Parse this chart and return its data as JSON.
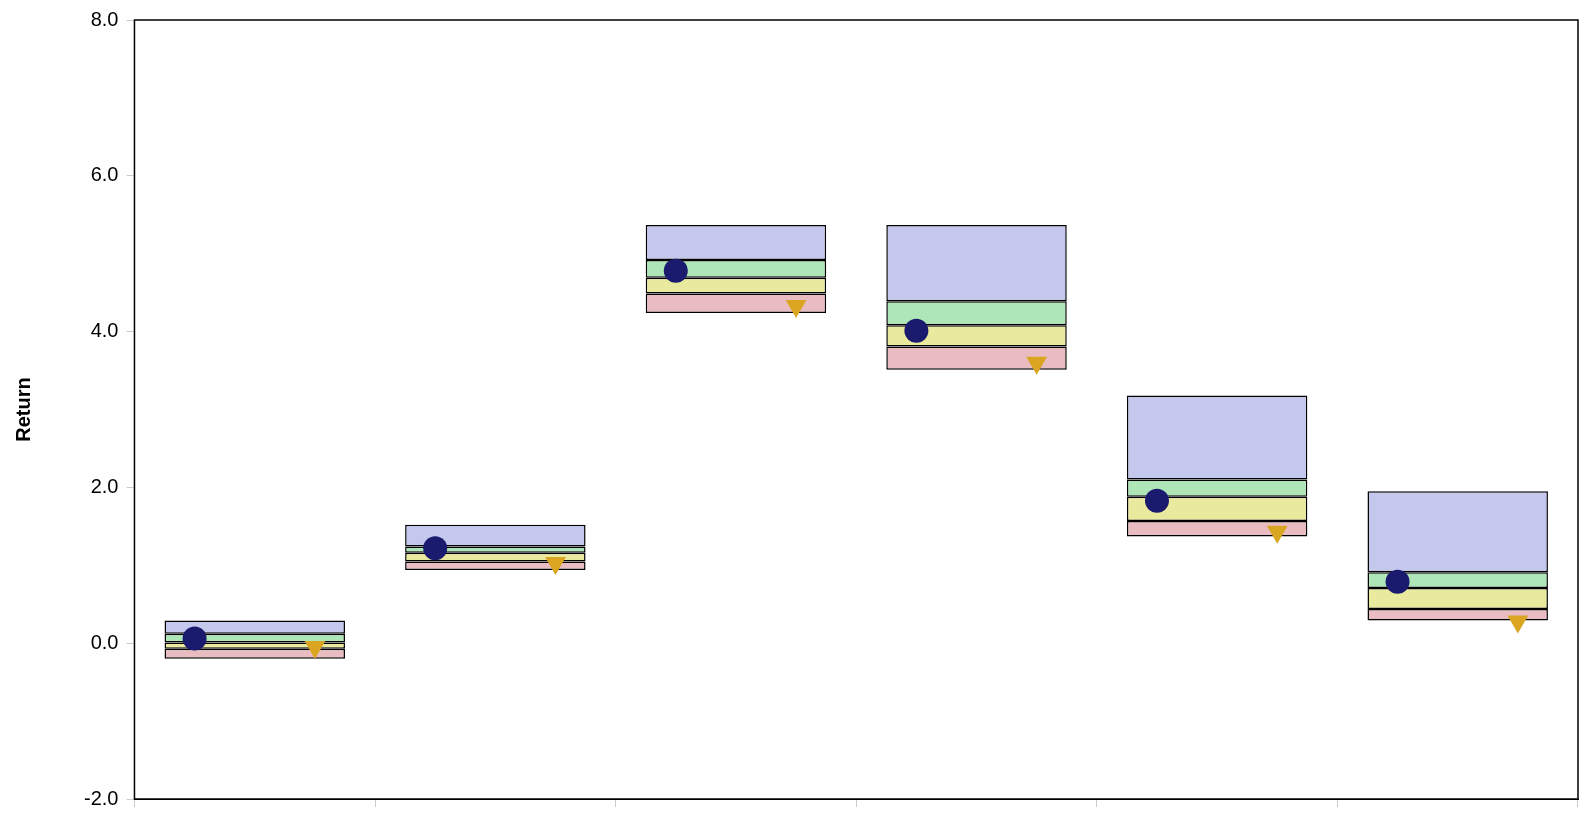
{
  "chart_data": {
    "type": "bar",
    "ylabel": "Return",
    "categories": [
      null,
      null,
      null,
      null,
      null,
      null
    ],
    "series": [
      {
        "color": "#e8bcc0",
        "base": [
          -0.2,
          0.94,
          4.24,
          3.51,
          1.37,
          0.29
        ],
        "values": [
          0.13,
          0.11,
          0.25,
          0.3,
          0.2,
          0.15
        ]
      },
      {
        "color": "#eaea9e",
        "base": [
          -0.07,
          1.05,
          4.49,
          3.81,
          1.57,
          0.44
        ],
        "values": [
          0.08,
          0.11,
          0.2,
          0.27,
          0.31,
          0.27
        ]
      },
      {
        "color": "#aee6b8",
        "base": [
          0.01,
          1.16,
          4.69,
          4.08,
          1.88,
          0.71
        ],
        "values": [
          0.11,
          0.08,
          0.23,
          0.31,
          0.22,
          0.2
        ]
      },
      {
        "color": "#c4c8ec",
        "base": [
          0.12,
          1.24,
          4.92,
          4.39,
          2.1,
          0.91
        ],
        "values": [
          0.17,
          0.28,
          0.45,
          0.98,
          1.08,
          1.04
        ]
      },
      {
        "type": "scatter",
        "marker": "circle",
        "color": "#1a1a6e",
        "values": [
          0.06,
          1.22,
          4.78,
          4.01,
          1.83,
          0.79
        ]
      },
      {
        "type": "scatter",
        "marker": "triangle",
        "color": "#daa520",
        "values": [
          -0.05,
          1.03,
          4.33,
          3.6,
          1.43,
          0.28
        ]
      }
    ],
    "ylim": [
      -2,
      8
    ],
    "yticks": [
      {
        "value": -2,
        "label": "-2.0"
      },
      {
        "value": 0,
        "label": "0.0"
      },
      {
        "value": 2,
        "label": "2.0"
      },
      {
        "value": 4,
        "label": "4.0"
      },
      {
        "value": 6,
        "label": "6.0"
      },
      {
        "value": 8,
        "label": "8.0"
      }
    ]
  }
}
